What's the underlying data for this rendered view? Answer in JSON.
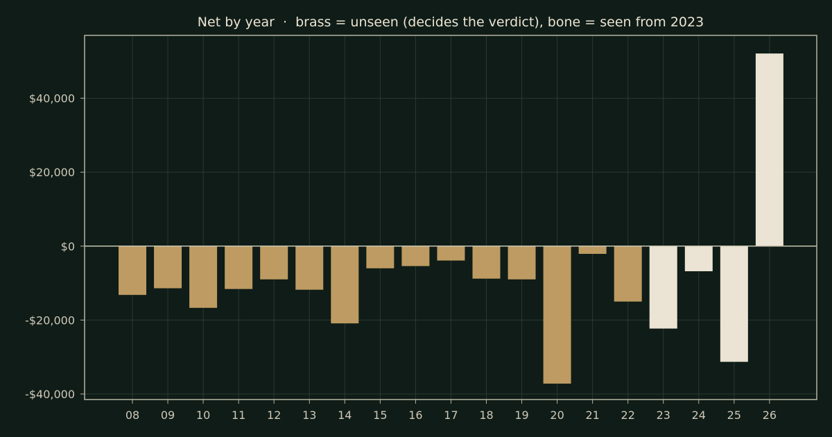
{
  "chart_data": {
    "type": "bar",
    "title": "Net by year  ·  brass = unseen (decides the verdict), bone = seen from 2023",
    "xlabel": "",
    "ylabel": "",
    "categories": [
      "08",
      "09",
      "10",
      "11",
      "12",
      "13",
      "14",
      "15",
      "16",
      "17",
      "18",
      "19",
      "20",
      "21",
      "22",
      "23",
      "24",
      "25",
      "26"
    ],
    "values": [
      -13200,
      -11400,
      -16700,
      -11600,
      -9000,
      -11800,
      -20900,
      -6000,
      -5400,
      -3900,
      -8800,
      -9000,
      -37200,
      -2100,
      -15000,
      -22300,
      -6800,
      -31300,
      52100
    ],
    "bar_colors": [
      "#bd9b62",
      "#bd9b62",
      "#bd9b62",
      "#bd9b62",
      "#bd9b62",
      "#bd9b62",
      "#bd9b62",
      "#bd9b62",
      "#bd9b62",
      "#bd9b62",
      "#bd9b62",
      "#bd9b62",
      "#bd9b62",
      "#bd9b62",
      "#bd9b62",
      "#ebe3d3",
      "#ebe3d3",
      "#ebe3d3",
      "#ebe3d3"
    ],
    "ylim": [
      -41500,
      57000
    ],
    "yticks": [
      -40000,
      -20000,
      0,
      20000,
      40000
    ],
    "ytick_labels": [
      "-$40,000",
      "-$20,000",
      "$0",
      "$20,000",
      "$40,000"
    ],
    "grid": true,
    "legend": "none"
  }
}
